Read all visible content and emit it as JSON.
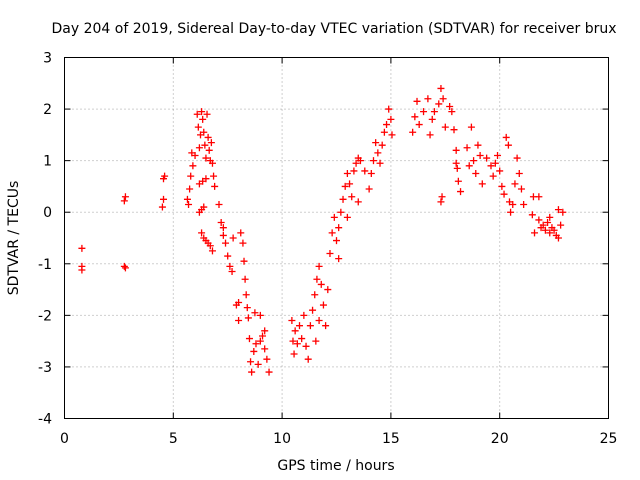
{
  "chart_data": {
    "type": "scatter",
    "title": "Day 204 of 2019, Sidereal Day-to-day VTEC variation (SDTVAR) for receiver brux",
    "xlabel": "GPS time / hours",
    "ylabel": "SDTVAR / TECUs",
    "xlim": [
      0,
      25
    ],
    "ylim": [
      -4,
      3
    ],
    "xticks": [
      "0",
      "5",
      "10",
      "15",
      "20",
      "25"
    ],
    "yticks": [
      "-4",
      "-3",
      "-2",
      "-1",
      "0",
      "1",
      "2",
      "3"
    ],
    "grid": true,
    "marker": "+",
    "color": "#ff0000",
    "series": [
      {
        "name": "SDTVAR",
        "points": [
          [
            0.8,
            -0.7
          ],
          [
            0.8,
            -1.05
          ],
          [
            0.8,
            -1.12
          ],
          [
            2.75,
            0.22
          ],
          [
            2.8,
            0.3
          ],
          [
            2.75,
            -1.05
          ],
          [
            2.8,
            -1.08
          ],
          [
            4.5,
            0.1
          ],
          [
            4.55,
            0.25
          ],
          [
            4.55,
            0.65
          ],
          [
            4.6,
            0.7
          ],
          [
            5.65,
            0.25
          ],
          [
            5.7,
            0.15
          ],
          [
            5.75,
            0.45
          ],
          [
            5.8,
            0.7
          ],
          [
            5.85,
            1.15
          ],
          [
            5.9,
            0.9
          ],
          [
            6.0,
            1.1
          ],
          [
            6.1,
            1.9
          ],
          [
            6.15,
            1.65
          ],
          [
            6.2,
            1.25
          ],
          [
            6.25,
            1.5
          ],
          [
            6.3,
            1.95
          ],
          [
            6.35,
            1.8
          ],
          [
            6.4,
            1.55
          ],
          [
            6.45,
            1.3
          ],
          [
            6.5,
            1.05
          ],
          [
            6.55,
            1.9
          ],
          [
            6.6,
            1.45
          ],
          [
            6.65,
            1.2
          ],
          [
            6.7,
            1.0
          ],
          [
            6.75,
            1.35
          ],
          [
            6.8,
            0.95
          ],
          [
            6.85,
            0.7
          ],
          [
            6.9,
            0.5
          ],
          [
            6.3,
            -0.4
          ],
          [
            6.4,
            -0.5
          ],
          [
            6.5,
            -0.55
          ],
          [
            6.6,
            -0.6
          ],
          [
            6.7,
            -0.65
          ],
          [
            6.8,
            -0.75
          ],
          [
            6.2,
            0.0
          ],
          [
            6.3,
            0.05
          ],
          [
            6.4,
            0.1
          ],
          [
            6.2,
            0.55
          ],
          [
            6.35,
            0.6
          ],
          [
            6.5,
            0.65
          ],
          [
            7.1,
            0.15
          ],
          [
            7.2,
            -0.2
          ],
          [
            7.3,
            -0.45
          ],
          [
            7.4,
            -0.6
          ],
          [
            7.5,
            -0.85
          ],
          [
            7.6,
            -1.05
          ],
          [
            7.7,
            -1.15
          ],
          [
            7.75,
            -0.5
          ],
          [
            7.3,
            -0.3
          ],
          [
            7.9,
            -1.8
          ],
          [
            8.0,
            -1.75
          ],
          [
            8.0,
            -2.1
          ],
          [
            8.1,
            -0.4
          ],
          [
            8.2,
            -0.6
          ],
          [
            8.25,
            -0.95
          ],
          [
            8.3,
            -1.3
          ],
          [
            8.35,
            -1.6
          ],
          [
            8.4,
            -1.85
          ],
          [
            8.45,
            -2.05
          ],
          [
            8.5,
            -2.45
          ],
          [
            8.55,
            -2.9
          ],
          [
            8.6,
            -3.1
          ],
          [
            8.7,
            -2.7
          ],
          [
            8.8,
            -2.55
          ],
          [
            8.9,
            -2.95
          ],
          [
            9.0,
            -2.5
          ],
          [
            9.1,
            -2.4
          ],
          [
            9.2,
            -2.65
          ],
          [
            9.3,
            -2.85
          ],
          [
            9.4,
            -3.1
          ],
          [
            8.75,
            -1.95
          ],
          [
            9.0,
            -2.0
          ],
          [
            9.2,
            -2.3
          ],
          [
            10.45,
            -2.1
          ],
          [
            10.5,
            -2.5
          ],
          [
            10.55,
            -2.75
          ],
          [
            10.6,
            -2.3
          ],
          [
            10.7,
            -2.55
          ],
          [
            10.8,
            -2.2
          ],
          [
            10.9,
            -2.45
          ],
          [
            11.0,
            -2.0
          ],
          [
            11.1,
            -2.6
          ],
          [
            11.2,
            -2.85
          ],
          [
            11.3,
            -2.2
          ],
          [
            11.4,
            -1.9
          ],
          [
            11.5,
            -1.6
          ],
          [
            11.6,
            -1.3
          ],
          [
            11.7,
            -1.05
          ],
          [
            11.8,
            -1.4
          ],
          [
            11.9,
            -1.8
          ],
          [
            12.0,
            -2.2
          ],
          [
            12.1,
            -1.5
          ],
          [
            11.55,
            -2.5
          ],
          [
            11.7,
            -2.1
          ],
          [
            12.2,
            -0.8
          ],
          [
            12.3,
            -0.4
          ],
          [
            12.4,
            -0.1
          ],
          [
            12.5,
            -0.55
          ],
          [
            12.6,
            -0.9
          ],
          [
            12.7,
            0.0
          ],
          [
            12.8,
            0.25
          ],
          [
            12.9,
            0.5
          ],
          [
            13.0,
            0.75
          ],
          [
            13.1,
            0.55
          ],
          [
            13.2,
            0.3
          ],
          [
            13.3,
            0.8
          ],
          [
            13.4,
            0.95
          ],
          [
            13.5,
            1.05
          ],
          [
            13.6,
            1.0
          ],
          [
            13.8,
            0.8
          ],
          [
            14.0,
            0.45
          ],
          [
            14.1,
            0.75
          ],
          [
            14.2,
            1.0
          ],
          [
            14.3,
            1.35
          ],
          [
            14.4,
            1.15
          ],
          [
            14.5,
            0.95
          ],
          [
            14.6,
            1.3
          ],
          [
            14.7,
            1.55
          ],
          [
            14.8,
            1.7
          ],
          [
            14.9,
            2.0
          ],
          [
            15.0,
            1.8
          ],
          [
            15.05,
            1.5
          ],
          [
            12.6,
            -0.3
          ],
          [
            13.0,
            -0.1
          ],
          [
            13.5,
            0.2
          ],
          [
            16.0,
            1.55
          ],
          [
            16.1,
            1.85
          ],
          [
            16.2,
            2.15
          ],
          [
            16.3,
            1.7
          ],
          [
            16.5,
            1.95
          ],
          [
            16.7,
            2.2
          ],
          [
            16.8,
            1.5
          ],
          [
            16.9,
            1.8
          ],
          [
            17.0,
            1.95
          ],
          [
            17.2,
            2.1
          ],
          [
            17.3,
            2.4
          ],
          [
            17.4,
            2.2
          ],
          [
            17.5,
            1.65
          ],
          [
            17.7,
            2.05
          ],
          [
            17.8,
            1.95
          ],
          [
            17.9,
            1.6
          ],
          [
            18.0,
            1.2
          ],
          [
            18.05,
            0.85
          ],
          [
            18.1,
            0.6
          ],
          [
            18.2,
            0.4
          ],
          [
            17.3,
            0.2
          ],
          [
            17.35,
            0.3
          ],
          [
            18.0,
            0.95
          ],
          [
            18.5,
            1.25
          ],
          [
            18.6,
            0.9
          ],
          [
            18.7,
            1.65
          ],
          [
            18.8,
            1.0
          ],
          [
            18.9,
            0.75
          ],
          [
            19.0,
            1.3
          ],
          [
            19.1,
            1.1
          ],
          [
            19.2,
            0.55
          ],
          [
            19.4,
            1.05
          ],
          [
            19.6,
            0.9
          ],
          [
            19.7,
            0.7
          ],
          [
            19.8,
            0.95
          ],
          [
            19.9,
            1.1
          ],
          [
            20.0,
            0.8
          ],
          [
            20.1,
            0.5
          ],
          [
            20.2,
            0.35
          ],
          [
            20.3,
            1.45
          ],
          [
            20.4,
            1.3
          ],
          [
            20.45,
            0.2
          ],
          [
            20.5,
            0.0
          ],
          [
            20.6,
            0.15
          ],
          [
            20.7,
            0.55
          ],
          [
            20.8,
            1.05
          ],
          [
            20.9,
            0.75
          ],
          [
            21.0,
            0.45
          ],
          [
            21.1,
            0.15
          ],
          [
            21.5,
            -0.05
          ],
          [
            21.55,
            0.3
          ],
          [
            21.6,
            -0.4
          ],
          [
            21.8,
            -0.15
          ],
          [
            21.9,
            -0.3
          ],
          [
            22.0,
            -0.25
          ],
          [
            22.1,
            -0.35
          ],
          [
            22.2,
            -0.2
          ],
          [
            22.3,
            -0.4
          ],
          [
            22.4,
            -0.3
          ],
          [
            22.5,
            -0.35
          ],
          [
            22.6,
            -0.45
          ],
          [
            22.7,
            -0.5
          ],
          [
            22.8,
            -0.25
          ],
          [
            22.9,
            0.0
          ],
          [
            22.7,
            0.05
          ],
          [
            22.3,
            -0.1
          ],
          [
            21.8,
            0.3
          ]
        ]
      }
    ]
  }
}
